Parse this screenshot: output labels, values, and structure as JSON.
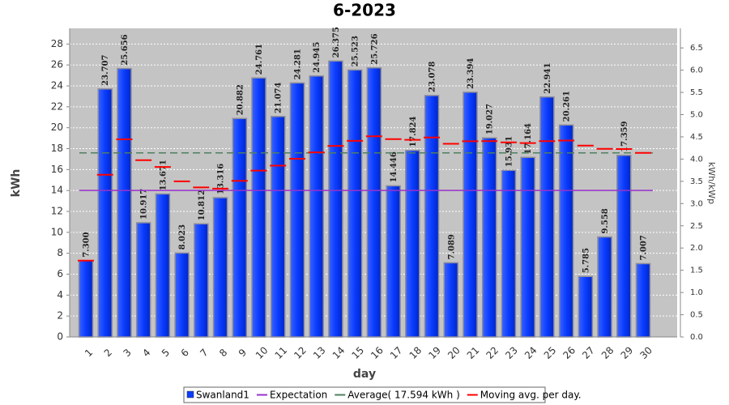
{
  "chart_data": {
    "type": "bar",
    "title": "6-2023",
    "x_label": "day",
    "y_label": "kWh",
    "y2_label": "kWh/kWp",
    "categories": [
      "1",
      "2",
      "3",
      "4",
      "5",
      "6",
      "7",
      "8",
      "9",
      "10",
      "11",
      "12",
      "13",
      "14",
      "15",
      "16",
      "17",
      "18",
      "19",
      "20",
      "21",
      "22",
      "23",
      "24",
      "25",
      "26",
      "27",
      "28",
      "29",
      "30"
    ],
    "series": [
      {
        "name": "Swanland1",
        "color": "#0a3cff",
        "values": [
          7.3,
          23.707,
          25.656,
          10.917,
          13.671,
          8.023,
          10.812,
          13.316,
          20.882,
          24.761,
          21.074,
          24.281,
          24.945,
          26.375,
          25.523,
          25.726,
          14.446,
          17.824,
          23.078,
          7.089,
          23.394,
          19.027,
          15.931,
          17.164,
          22.941,
          20.261,
          5.785,
          9.558,
          17.359,
          7.007
        ],
        "value_labels": [
          "7.300",
          "23.707",
          "25.656",
          "10.917",
          "13.671",
          "8.023",
          "10.812",
          "13.316",
          "20.882",
          "24.761",
          "21.074",
          "24.281",
          "24.945",
          "26.375",
          "25.523",
          "25.726",
          "14.446",
          "17.824",
          "23.078",
          "7.089",
          "23.394",
          "19.027",
          "15.931",
          "17.164",
          "22.941",
          "20.261",
          "5.785",
          "9.558",
          "17.359",
          "7.007"
        ]
      },
      {
        "name": "Expectation",
        "color": "#9932cc",
        "value": 14
      },
      {
        "name": "Average( 17.594 kWh )",
        "color": "#4f7f5f",
        "value": 17.594
      },
      {
        "name": "Moving avg. per day.",
        "color": "#ff0000",
        "values": [
          7.3,
          15.504,
          18.888,
          16.895,
          16.25,
          14.879,
          14.298,
          14.175,
          14.92,
          15.905,
          16.374,
          17.033,
          17.642,
          18.266,
          18.75,
          19.186,
          18.907,
          18.847,
          19.069,
          18.47,
          18.705,
          18.719,
          18.598,
          18.538,
          18.715,
          18.774,
          18.293,
          17.981,
          17.96,
          17.594
        ]
      }
    ],
    "ylim": [
      0,
      29.5
    ],
    "yticks": [
      0,
      2,
      4,
      6,
      8,
      10,
      12,
      14,
      16,
      18,
      20,
      22,
      24,
      26,
      28
    ],
    "y2lim": [
      0,
      6.94
    ],
    "y2ticks": [
      {
        "value": 0,
        "label": "0.0"
      },
      {
        "value": 0.5,
        "label": "0.5"
      },
      {
        "value": 1,
        "label": "1.0"
      },
      {
        "value": 1.5,
        "label": "1.5"
      },
      {
        "value": 2,
        "label": "2.0"
      },
      {
        "value": 2.5,
        "label": "2.5"
      },
      {
        "value": 3,
        "label": "3.0"
      },
      {
        "value": 3.5,
        "label": "3.5"
      },
      {
        "value": 4,
        "label": "4.0"
      },
      {
        "value": 4.5,
        "label": "4.5"
      },
      {
        "value": 5,
        "label": "5.0"
      },
      {
        "value": 5.5,
        "label": "5.5"
      },
      {
        "value": 6,
        "label": "6.0"
      },
      {
        "value": 6.5,
        "label": "6.5"
      }
    ],
    "grid": true
  }
}
